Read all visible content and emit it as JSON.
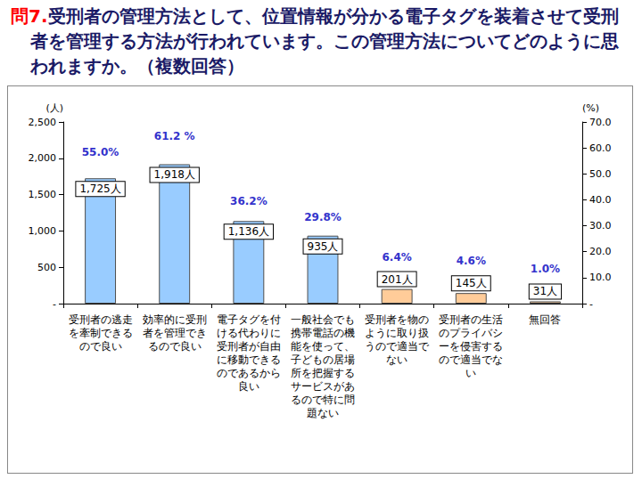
{
  "chart_data": {
    "type": "bar",
    "title": "問7.受刑者の管理方法として、位置情報が分かる電子タグを装着させて受刑者を管理する方法が行われています。この管理方法についてどのように思われますか。（複数回答）",
    "ylabel": "(人)",
    "y2label": "(%)",
    "categories": [
      "受刑者の逃走を牽制できるので良い",
      "効率的に受刑者を管理できるので良い",
      "電子タグを付ける代わりに受刑者が自由に移動できるのであるから良い",
      "一般社会でも携帯電話の機能を使って、子どもの居場所を把握するサービスがあるので特に問題ない",
      "受刑者を物のように取り扱うので適当でない",
      "受刑者の生活のプライバシーを侵害するので適当でない",
      "無回答"
    ],
    "series": [
      {
        "type": "bar",
        "values": [
          1725,
          1918,
          1136,
          935,
          201,
          145,
          31
        ],
        "value_labels": [
          "1,725人",
          "1,918人",
          "1,136人",
          "935人",
          "201人",
          "145人",
          "31人"
        ],
        "colors": [
          "#99ccff",
          "#99ccff",
          "#99ccff",
          "#99ccff",
          "#ffcc99",
          "#ffcc99",
          "#ffcc99"
        ]
      },
      {
        "type": "line",
        "axis": "y2",
        "marker": "none",
        "line_style": "none",
        "color": "#3333cc",
        "values": [
          55.0,
          61.2,
          36.2,
          29.8,
          6.4,
          4.6,
          1.0
        ],
        "value_labels": [
          "55.0%",
          "61.2 %",
          "36.2%",
          "29.8%",
          "6.4%",
          "4.6%",
          "1.0%"
        ]
      }
    ],
    "ylim": [
      0,
      2500
    ],
    "yticks": [
      {
        "value": 0,
        "label": "-"
      },
      500,
      {
        "value": 1000,
        "label": "1,000"
      },
      {
        "value": 1500,
        "label": "1,500"
      },
      {
        "value": 2000,
        "label": "2,000"
      },
      {
        "value": 2500,
        "label": "2,500"
      }
    ],
    "y2lim": [
      0,
      70
    ],
    "y2ticks": [
      {
        "value": 0,
        "label": "-"
      },
      {
        "value": 10,
        "label": "10.0"
      },
      {
        "value": 20,
        "label": "20.0"
      },
      {
        "value": 30,
        "label": "30.0"
      },
      {
        "value": 40,
        "label": "40.0"
      },
      {
        "value": 50,
        "label": "50.0"
      },
      {
        "value": 60,
        "label": "60.0"
      },
      {
        "value": 70,
        "label": "70.0"
      }
    ],
    "grid": false,
    "data_labels": true
  }
}
